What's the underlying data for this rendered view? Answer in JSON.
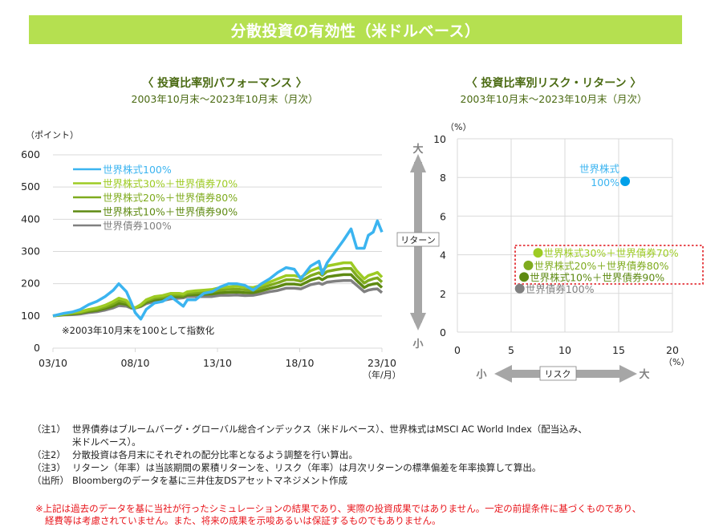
{
  "banner": {
    "title": "分散投資の有効性（米ドルベース）"
  },
  "colors": {
    "banner": "#b5e050",
    "title_text": "#4a6a12",
    "equity100": "#3bb4f0",
    "e30b70": "#9dcb23",
    "e20b80": "#7fab1e",
    "e10b90": "#5e8a12",
    "bond100": "#808080",
    "disclaimer": "#e8151b"
  },
  "chart_data": [
    {
      "type": "line",
      "title": "〈 投資比率別パフォーマンス 〉",
      "subtitle": "2003年10月末～2023年10月末（月次）",
      "ylabel": "（ポイント）",
      "xlabel": "（年/月）",
      "ylim": [
        0,
        600
      ],
      "yticks": [
        0,
        100,
        200,
        300,
        400,
        500,
        600
      ],
      "xticks": [
        "03/10",
        "08/10",
        "13/10",
        "18/10",
        "23/10"
      ],
      "grid": true,
      "legend_position": "top-left",
      "annotation": "※2003年10月末を100として指数化",
      "x": [
        2003.83,
        2004.5,
        2005.0,
        2005.5,
        2006.0,
        2006.5,
        2007.0,
        2007.5,
        2007.83,
        2008.3,
        2008.6,
        2008.83,
        2009.17,
        2009.5,
        2010.0,
        2010.5,
        2011.0,
        2011.5,
        2011.75,
        2012.0,
        2012.5,
        2013.0,
        2013.5,
        2014.0,
        2014.5,
        2015.0,
        2015.5,
        2016.0,
        2016.5,
        2017.0,
        2017.5,
        2018.0,
        2018.5,
        2018.9,
        2019.5,
        2020.0,
        2020.2,
        2020.5,
        2021.0,
        2021.5,
        2021.95,
        2022.3,
        2022.75,
        2023.0,
        2023.3,
        2023.55,
        2023.83
      ],
      "series": [
        {
          "name": "世界株式100%",
          "color": "#3bb4f0",
          "values": [
            100,
            108,
            112,
            120,
            135,
            145,
            160,
            180,
            200,
            175,
            140,
            110,
            90,
            120,
            140,
            145,
            160,
            140,
            130,
            150,
            150,
            170,
            175,
            190,
            200,
            200,
            195,
            180,
            200,
            215,
            235,
            250,
            245,
            215,
            255,
            270,
            230,
            265,
            300,
            335,
            370,
            310,
            310,
            350,
            360,
            395,
            360
          ]
        },
        {
          "name": "世界株式30%＋世界債券70%",
          "color": "#9dcb23",
          "values": [
            100,
            106,
            110,
            113,
            120,
            125,
            133,
            145,
            155,
            148,
            130,
            125,
            135,
            150,
            160,
            163,
            170,
            170,
            168,
            175,
            178,
            180,
            182,
            188,
            190,
            192,
            190,
            188,
            195,
            205,
            215,
            225,
            225,
            220,
            240,
            250,
            240,
            255,
            260,
            265,
            265,
            240,
            215,
            225,
            230,
            235,
            220
          ]
        },
        {
          "name": "世界株式20%＋世界債券80%",
          "color": "#7fab1e",
          "values": [
            100,
            105,
            108,
            111,
            117,
            121,
            128,
            138,
            147,
            142,
            128,
            125,
            133,
            146,
            155,
            158,
            165,
            165,
            164,
            170,
            172,
            174,
            175,
            180,
            182,
            183,
            181,
            180,
            187,
            195,
            203,
            212,
            212,
            208,
            225,
            234,
            226,
            238,
            243,
            247,
            247,
            225,
            202,
            210,
            215,
            218,
            205
          ]
        },
        {
          "name": "世界株式10%＋世界債券90%",
          "color": "#5e8a12",
          "values": [
            100,
            104,
            106,
            109,
            114,
            117,
            123,
            131,
            139,
            136,
            126,
            125,
            131,
            142,
            150,
            153,
            159,
            160,
            160,
            165,
            166,
            167,
            168,
            172,
            173,
            174,
            172,
            172,
            178,
            185,
            191,
            199,
            199,
            196,
            211,
            218,
            212,
            221,
            225,
            228,
            228,
            210,
            188,
            195,
            199,
            201,
            188
          ]
        },
        {
          "name": "世界債券100%",
          "color": "#808080",
          "values": [
            100,
            103,
            104,
            106,
            110,
            113,
            118,
            125,
            132,
            130,
            124,
            124,
            129,
            138,
            145,
            148,
            153,
            155,
            156,
            160,
            160,
            160,
            160,
            164,
            164,
            165,
            163,
            164,
            169,
            175,
            179,
            186,
            186,
            184,
            197,
            202,
            198,
            205,
            208,
            210,
            210,
            195,
            175,
            180,
            183,
            184,
            172
          ]
        }
      ]
    },
    {
      "type": "scatter",
      "title": "〈 投資比率別リスク・リターン 〉",
      "subtitle": "2003年10月末～2023年10月末（月次）",
      "xlabel": "リスク",
      "ylabel": "リターン",
      "x_unit": "（%）",
      "y_unit": "（%）",
      "xlim": [
        0,
        20
      ],
      "ylim": [
        0,
        10
      ],
      "xticks": [
        0,
        5,
        10,
        15,
        20
      ],
      "yticks": [
        0,
        2,
        4,
        6,
        8,
        10
      ],
      "grid": true,
      "arrow_small": "小",
      "arrow_large": "大",
      "points": [
        {
          "name": "世界株式100%",
          "label_line1": "世界株式",
          "label_line2": "100%",
          "x": 15.6,
          "y": 7.8,
          "color": "#00a0e9"
        },
        {
          "name": "世界株式30%＋世界債券70%",
          "label": "世界株式30%＋世界債券70%",
          "x": 7.5,
          "y": 4.1,
          "color": "#9dcb23"
        },
        {
          "name": "世界株式20%＋世界債券80%",
          "label": "世界株式20%＋世界債券80%",
          "x": 6.6,
          "y": 3.45,
          "color": "#7fab1e"
        },
        {
          "name": "世界株式10%＋世界債券90%",
          "label": "世界株式10%＋世界債券90%",
          "x": 6.2,
          "y": 2.85,
          "color": "#5e8a12"
        },
        {
          "name": "世界債券100%",
          "label": "世界債券100%",
          "x": 5.8,
          "y": 2.25,
          "color": "#808080"
        }
      ]
    }
  ],
  "notes": [
    {
      "label": "（注1）",
      "text": "世界債券はブルームバーグ・グローバル総合インデックス（米ドルベース）、世界株式はMSCI AC World Index（配当込み、",
      "cont": "米ドルベース）。"
    },
    {
      "label": "（注2）",
      "text": "分散投資は各月末にそれぞれの配分比率となるよう調整を行い算出。"
    },
    {
      "label": "（注3）",
      "text": "リターン（年率）は当該期間の累積リターンを、リスク（年率）は月次リターンの標準偏差を年率換算して算出。"
    },
    {
      "label": "（出所）",
      "text": "Bloombergのデータを基に三井住友DSアセットマネジメント作成"
    }
  ],
  "disclaimer": {
    "line1": "※上記は過去のデータを基に当社が行ったシミュレーションの結果であり、実際の投資成果ではありません。一定の前提条件に基づくものであり、",
    "line2": "経費等は考慮されていません。また、将来の成果を示唆あるいは保証するものでもありません。"
  }
}
